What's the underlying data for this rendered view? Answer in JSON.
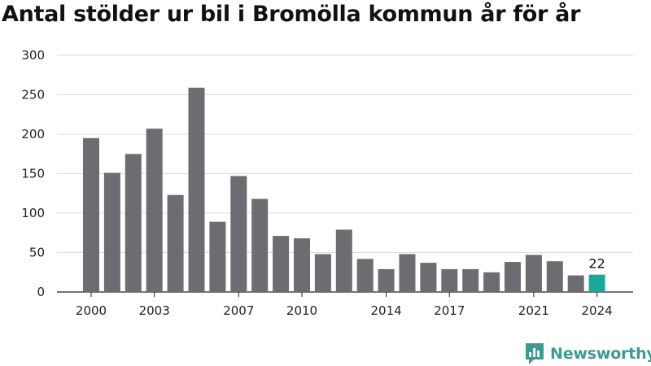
{
  "header": {
    "title": "Antal stölder ur bil i Bromölla kommun år för år"
  },
  "chart_data": {
    "type": "bar",
    "title": "Antal stölder ur bil i Bromölla kommun år för år",
    "xlabel": "",
    "ylabel": "",
    "categories": [
      2000,
      2001,
      2002,
      2003,
      2004,
      2005,
      2006,
      2007,
      2008,
      2009,
      2010,
      2011,
      2012,
      2013,
      2014,
      2015,
      2016,
      2017,
      2018,
      2019,
      2020,
      2021,
      2022,
      2023,
      2024
    ],
    "values": [
      195,
      151,
      175,
      207,
      123,
      259,
      89,
      147,
      118,
      71,
      68,
      48,
      79,
      42,
      29,
      48,
      37,
      29,
      29,
      25,
      38,
      47,
      39,
      21,
      22
    ],
    "ylim": [
      0,
      300
    ],
    "yticks": [
      0,
      50,
      100,
      150,
      200,
      250,
      300
    ],
    "xtick_labels": [
      "2000",
      "2003",
      "2007",
      "2010",
      "2014",
      "2017",
      "2021",
      "2024"
    ],
    "highlight_index": 24,
    "highlight_label": "22",
    "colors": {
      "bar": "#6d6c71",
      "highlight": "#17a89a",
      "grid": "#dcdcdc"
    },
    "grid": true,
    "legend": "none"
  },
  "logo": {
    "name": "Newsworthy",
    "icon": "newsworthy-logo-icon",
    "color": "#3e9a93"
  }
}
